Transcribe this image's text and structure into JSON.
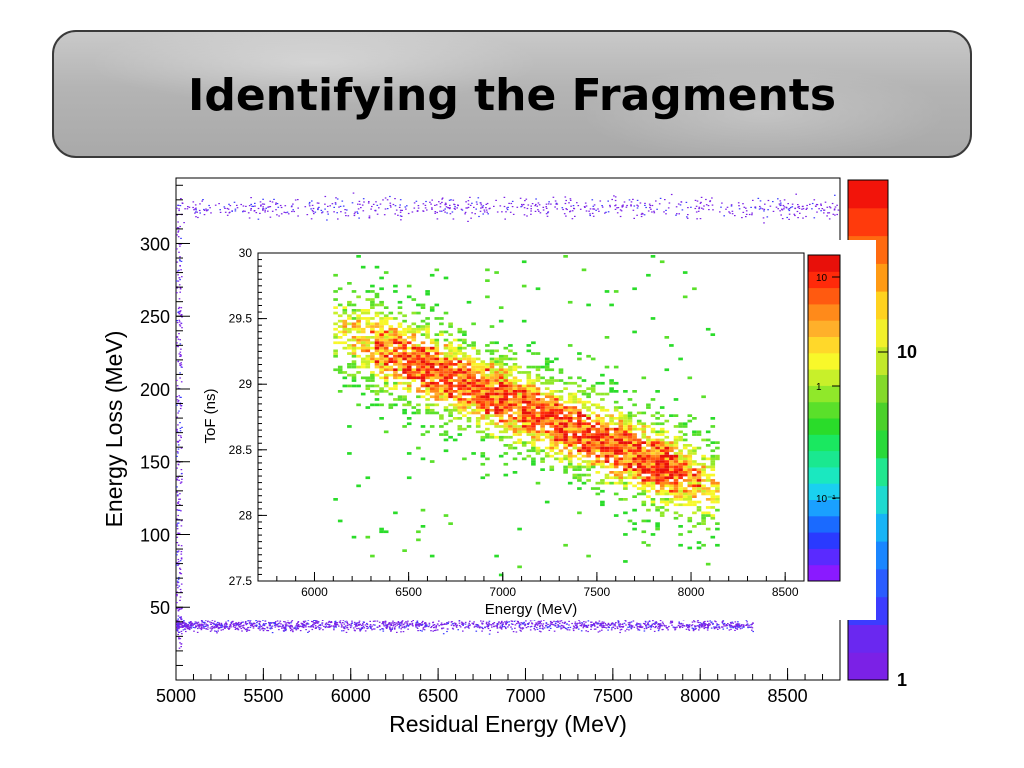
{
  "slide": {
    "title": "Identifying the Fragments"
  },
  "chart_data": [
    {
      "type": "heatmap",
      "title": "",
      "xlabel": "Residual Energy (MeV)",
      "ylabel": "Energy Loss (MeV)",
      "xlim": [
        5000,
        8800
      ],
      "ylim": [
        0,
        345
      ],
      "x_ticks": [
        5000,
        5500,
        6000,
        6500,
        7000,
        7500,
        8000,
        8500
      ],
      "y_ticks": [
        50,
        100,
        150,
        200,
        250,
        300
      ],
      "grid": false,
      "colorbar": {
        "scale": "log",
        "range": [
          1,
          50
        ],
        "tick_labels": [
          "1",
          "10"
        ]
      },
      "bands": [
        {
          "x_range": [
            5000,
            8300
          ],
          "y_center": 38,
          "y_spread": 5,
          "density": "high"
        },
        {
          "x_range": [
            5000,
            8800
          ],
          "y_center": 325,
          "y_spread": 12,
          "density": "low"
        },
        {
          "x_range": [
            5000,
            5030
          ],
          "y_range": [
            20,
            330
          ],
          "density": "medium"
        }
      ]
    },
    {
      "type": "heatmap",
      "title": "",
      "xlabel": "Energy (MeV)",
      "ylabel": "ToF (ns)",
      "xlim": [
        5700,
        8600
      ],
      "ylim": [
        27.5,
        30
      ],
      "x_ticks": [
        6000,
        6500,
        7000,
        7500,
        8000,
        8500
      ],
      "y_ticks": [
        27.5,
        28,
        28.5,
        29,
        29.5,
        30
      ],
      "grid": false,
      "colorbar": {
        "scale": "log",
        "range": [
          0.02,
          20
        ],
        "tick_labels": [
          "10⁻¹",
          "1",
          "10"
        ]
      },
      "trend": {
        "x": [
          6150,
          8150
        ],
        "y": [
          29.4,
          28.2
        ]
      },
      "x_extent": [
        6100,
        8150
      ]
    }
  ],
  "colors": {
    "outer_colorbar": [
      "#7b21e6",
      "#6a28f0",
      "#3c3cff",
      "#2a5cff",
      "#1a86ff",
      "#18b4f5",
      "#1fd9d0",
      "#21e68f",
      "#29d93a",
      "#4bd12a",
      "#84d92a",
      "#c2e82a",
      "#f2f02a",
      "#ffd21f",
      "#ff9a14",
      "#ff6a10",
      "#ff3a0c",
      "#f2140a"
    ],
    "inner_colorbar": [
      "#8a1aff",
      "#5a2aff",
      "#2a3aff",
      "#1a6aff",
      "#1aa0ff",
      "#1ad0f0",
      "#1ae8c0",
      "#1ae890",
      "#1ae860",
      "#2adc2a",
      "#5ae02a",
      "#90e82a",
      "#c8f02a",
      "#f8f82a",
      "#ffd82a",
      "#ffb02a",
      "#ff8a1a",
      "#ff5a10",
      "#ff2a0a",
      "#e8100a"
    ]
  }
}
